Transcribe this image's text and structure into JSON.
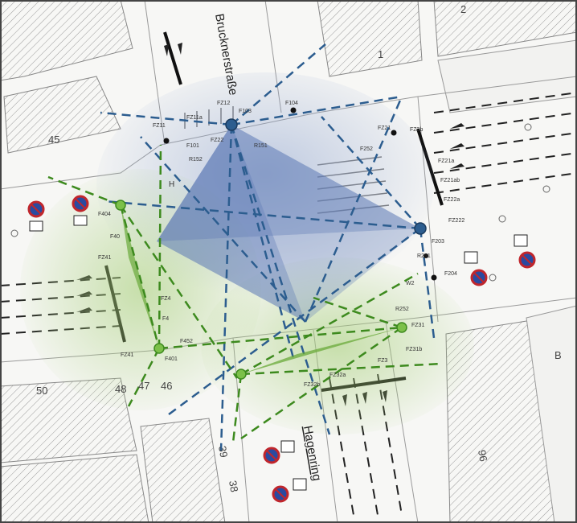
{
  "streets": {
    "north": "Brucknerstraße",
    "south": "Hagenring"
  },
  "house_numbers": {
    "n1": "2",
    "n2": "1",
    "n3": "45",
    "n4": "50",
    "n5": "48",
    "n6": "47",
    "n7": "46",
    "n8": "39",
    "n9": "38",
    "n10": "96",
    "n11": "B"
  },
  "labels": {
    "h": "H",
    "fz12": "FZ12",
    "f103": "F103",
    "f104": "F104",
    "fz11a": "FZ11a",
    "fz11": "FZ11",
    "f101": "F101",
    "fz22": "FZ22",
    "r152": "R152",
    "r151": "R151",
    "f252": "F252",
    "fz21": "FZ21",
    "fz2b": "FZ2b",
    "fz21a": "FZ21a",
    "fz21ab": "FZ21ab",
    "fz22a": "FZ22a",
    "fz222": "FZ222",
    "f203": "F203",
    "r251": "R251",
    "w2": "W2",
    "f204": "F204",
    "f404": "F404",
    "f40": "F40",
    "fz41": "FZ41",
    "fz4": "FZ4",
    "f4": "F4",
    "f452": "F452",
    "f401": "F401",
    "r252": "R252",
    "fz31": "FZ31",
    "fz31b": "FZ31b",
    "fz3": "FZ3",
    "fz32a": "FZ32a",
    "fz32b": "FZ32b"
  },
  "colors": {
    "blue_zone": "#5b78b5",
    "blue_line": "#2c5d8f",
    "green_zone": "#6aaa3a",
    "green_line": "#3d8a1e",
    "sign_red": "#c0262c",
    "sign_blue": "#2a4aa0"
  },
  "icons": [
    "no-stopping-sign-icon",
    "parking-sign-icon",
    "traffic-signal-icon",
    "sensor-node-icon"
  ]
}
